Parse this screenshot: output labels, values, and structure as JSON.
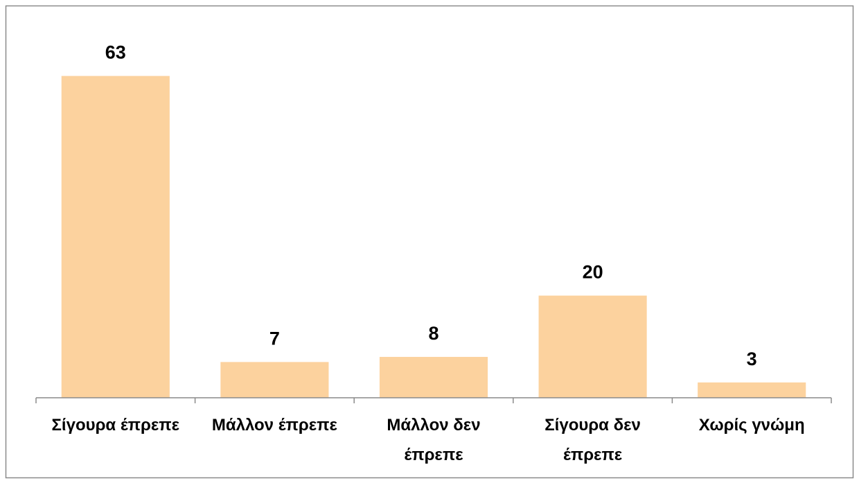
{
  "chart_data": {
    "type": "bar",
    "categories": [
      "Σίγουρα έπρεπε",
      "Μάλλον έπρεπε",
      "Μάλλον δεν έπρεπε",
      "Σίγουρα δεν έπρεπε",
      "Χωρίς γνώμη"
    ],
    "values": [
      63,
      7,
      8,
      20,
      3
    ],
    "color": "#fcd29e",
    "ylim": [
      0,
      70
    ]
  }
}
